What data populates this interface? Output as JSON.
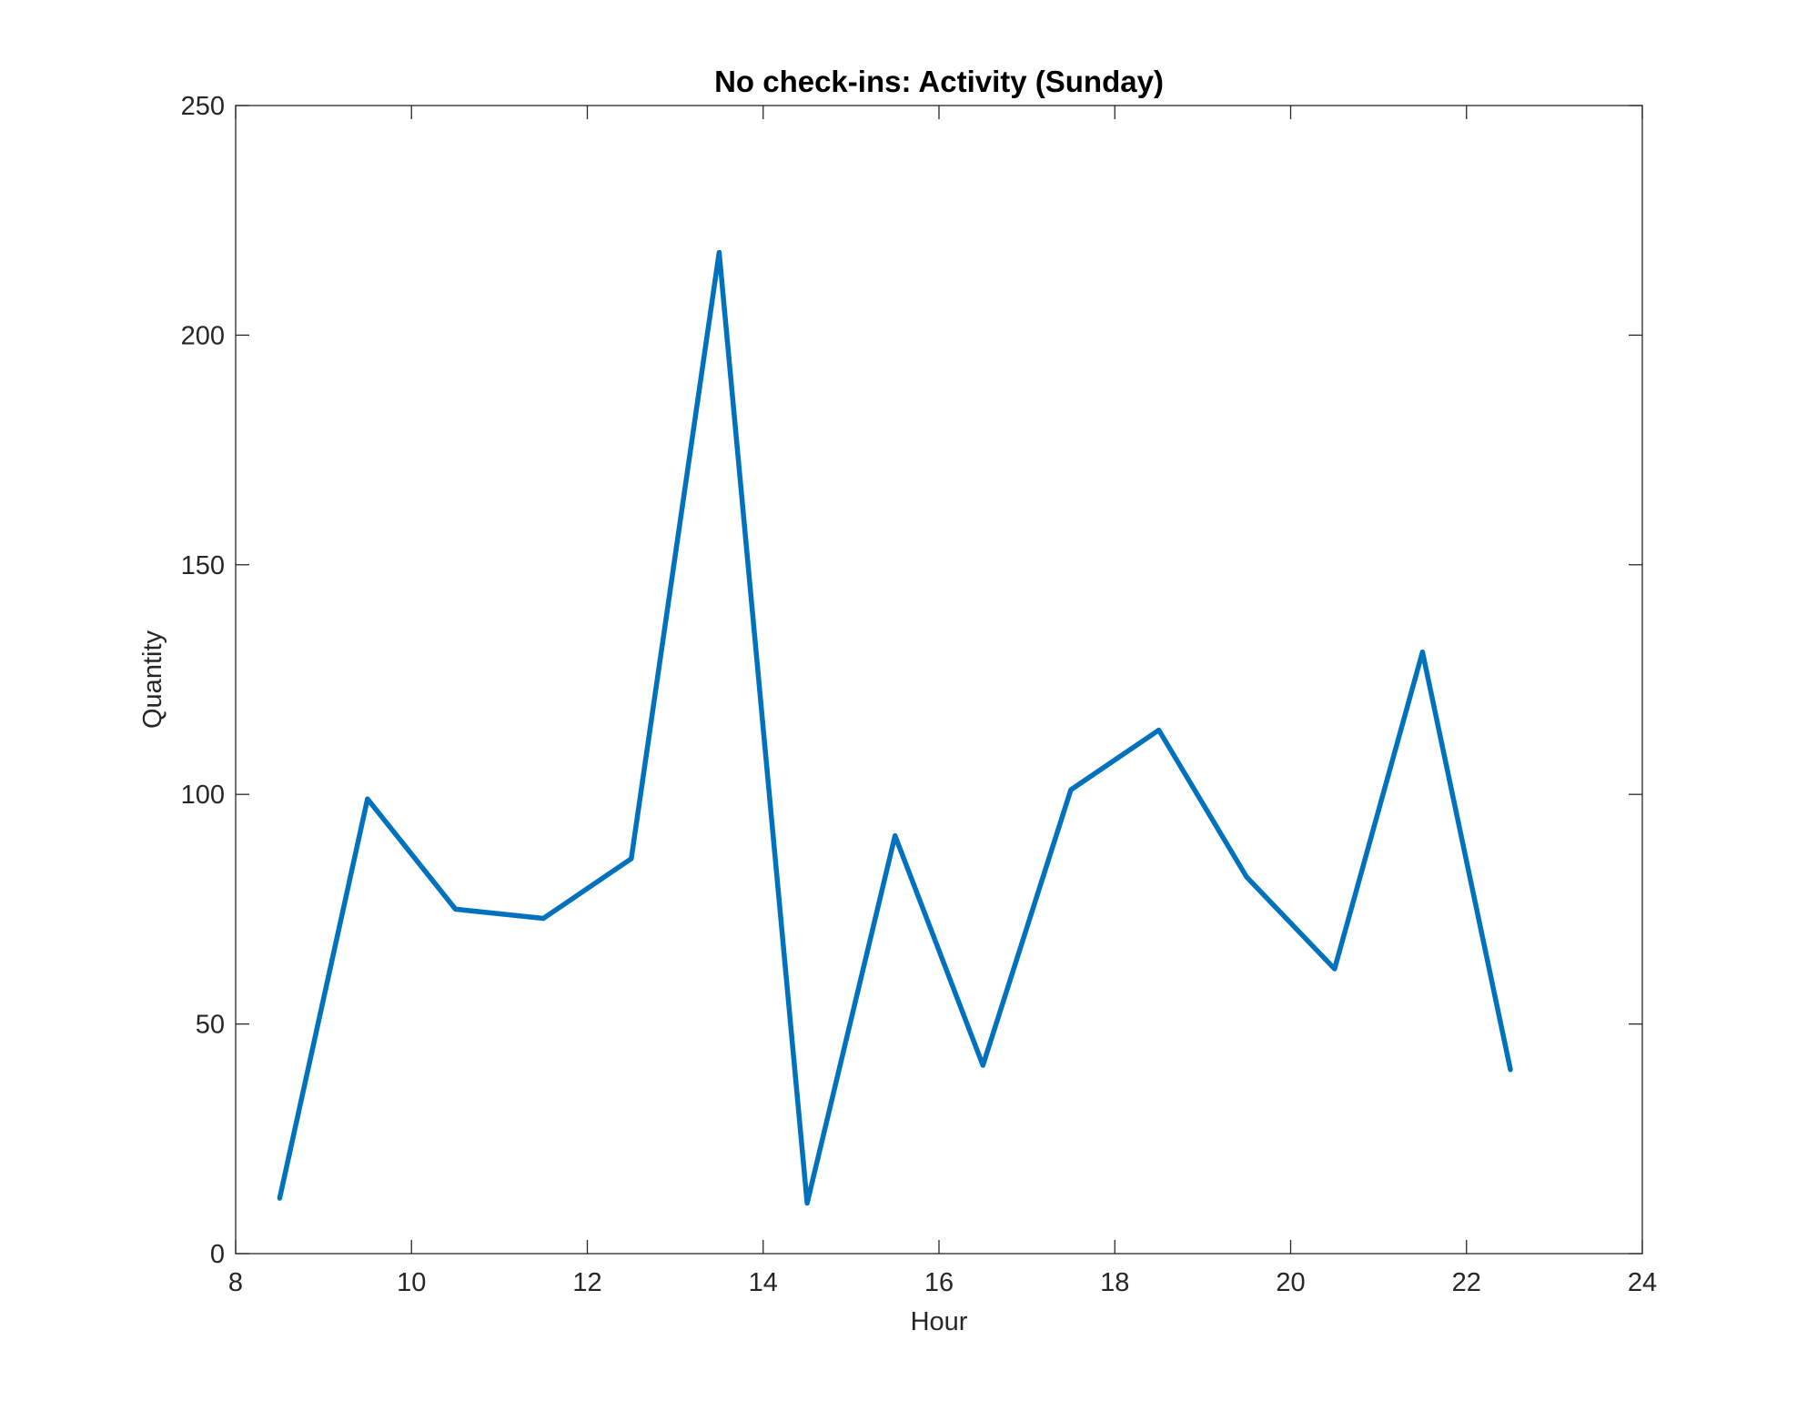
{
  "chart_data": {
    "type": "line",
    "title": "No check-ins: Activity (Sunday)",
    "xlabel": "Hour",
    "ylabel": "Quantity",
    "xlim": [
      8,
      24
    ],
    "ylim": [
      0,
      250
    ],
    "xticks": [
      8,
      10,
      12,
      14,
      16,
      18,
      20,
      22,
      24
    ],
    "yticks": [
      0,
      50,
      100,
      150,
      200,
      250
    ],
    "grid": false,
    "series": [
      {
        "color": "#0072BD",
        "x": [
          8.5,
          9.5,
          10.5,
          11.5,
          12.5,
          13.5,
          14.5,
          15.5,
          16.5,
          17.5,
          18.5,
          19.5,
          20.5,
          21.5,
          22.5
        ],
        "y": [
          12,
          99,
          75,
          73,
          86,
          218,
          11,
          91,
          41,
          101,
          114,
          82,
          62,
          131,
          40
        ]
      }
    ]
  }
}
